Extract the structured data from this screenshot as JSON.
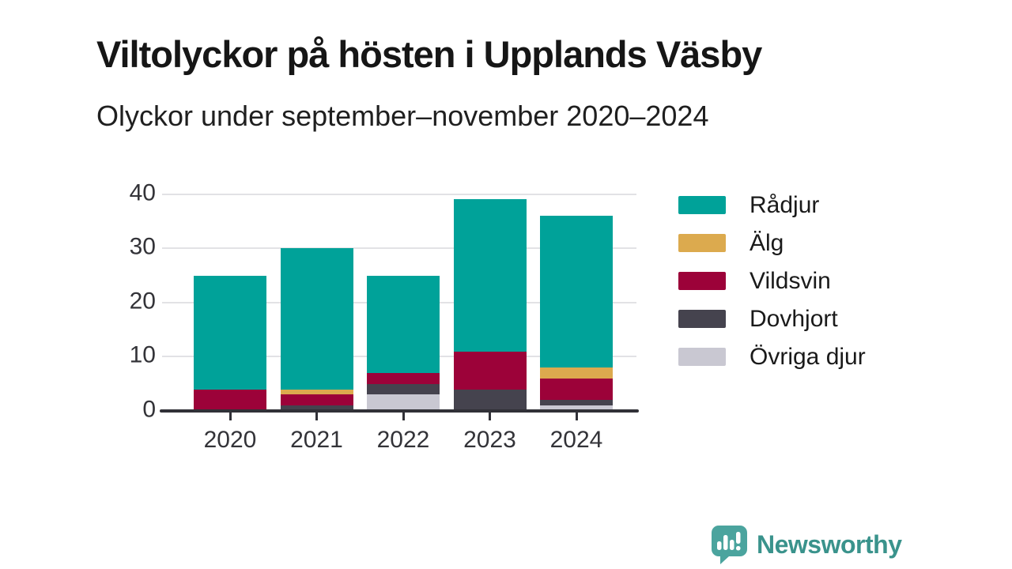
{
  "header": {
    "title": "Viltolyckor på hösten i Upplands Väsby",
    "subtitle": "Olyckor under september–november 2020–2024"
  },
  "chart_data": {
    "type": "bar",
    "stacked": true,
    "title": "Viltolyckor på hösten i Upplands Väsby",
    "subtitle": "Olyckor under september–november 2020–2024",
    "categories": [
      "2020",
      "2021",
      "2022",
      "2023",
      "2024"
    ],
    "series": [
      {
        "name": "Rådjur",
        "color": "#00a299",
        "values": [
          21,
          26,
          18,
          28,
          28
        ]
      },
      {
        "name": "Älg",
        "color": "#dcaa4e",
        "values": [
          0,
          1,
          0,
          0,
          2
        ]
      },
      {
        "name": "Vildsvin",
        "color": "#9c0239",
        "values": [
          4,
          2,
          2,
          7,
          4
        ]
      },
      {
        "name": "Dovhjort",
        "color": "#45434e",
        "values": [
          0,
          1,
          2,
          4,
          1
        ]
      },
      {
        "name": "Övriga djur",
        "color": "#c9c8d2",
        "values": [
          0,
          0,
          3,
          0,
          1
        ]
      }
    ],
    "stack_order_bottom_to_top": [
      "Övriga djur",
      "Dovhjort",
      "Vildsvin",
      "Älg",
      "Rådjur"
    ],
    "totals": [
      25,
      30,
      25,
      39,
      36
    ],
    "y_ticks": [
      0,
      10,
      20,
      30,
      40
    ],
    "ylim": [
      0,
      40
    ],
    "xlabel": "",
    "ylabel": "",
    "grid": "horizontal",
    "legend_position": "right"
  },
  "footer": {
    "brand": "Newsworthy"
  },
  "colors": {
    "axis": "#313137",
    "gridline": "#e2e2e5",
    "logo_bubble": "#4ba49e",
    "logo_text": "#3a938c"
  }
}
